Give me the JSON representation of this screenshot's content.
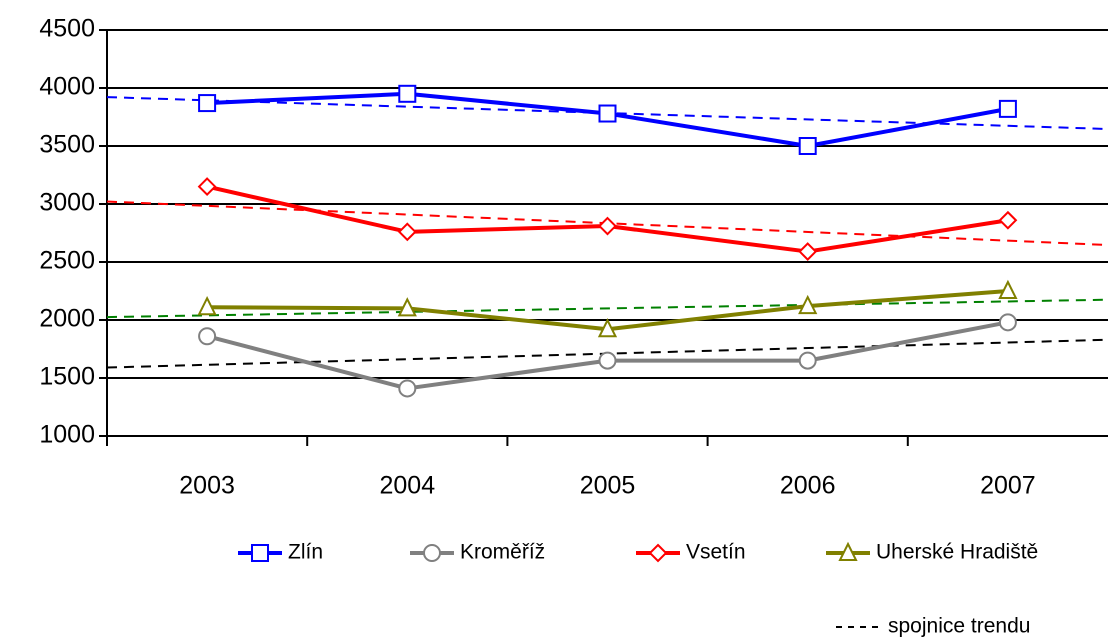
{
  "chart_data": {
    "type": "line",
    "categories": [
      "2003",
      "2004",
      "2005",
      "2006",
      "2007"
    ],
    "series": [
      {
        "name": "Zlín",
        "color": "#0000ff",
        "marker": "square",
        "trend_color": "#0000ff",
        "values": [
          3870,
          3950,
          3780,
          3500,
          3820
        ]
      },
      {
        "name": "Kroměříž",
        "color": "#808080",
        "marker": "circle",
        "trend_color": "#000000",
        "values": [
          1860,
          1410,
          1650,
          1650,
          1980
        ]
      },
      {
        "name": "Vsetín",
        "color": "#ff0000",
        "marker": "diamond",
        "trend_color": "#ff0000",
        "values": [
          3150,
          2760,
          2810,
          2590,
          2860
        ]
      },
      {
        "name": "Uherské Hradiště",
        "color": "#808000",
        "marker": "triangle",
        "trend_color": "#008000",
        "values": [
          2110,
          2100,
          1920,
          2120,
          2250
        ]
      }
    ],
    "trend_label": "spojnice trendu",
    "ylim": [
      1000,
      4500
    ],
    "yticks": [
      1000,
      1500,
      2000,
      2500,
      3000,
      3500,
      4000,
      4500
    ],
    "grid": true
  }
}
